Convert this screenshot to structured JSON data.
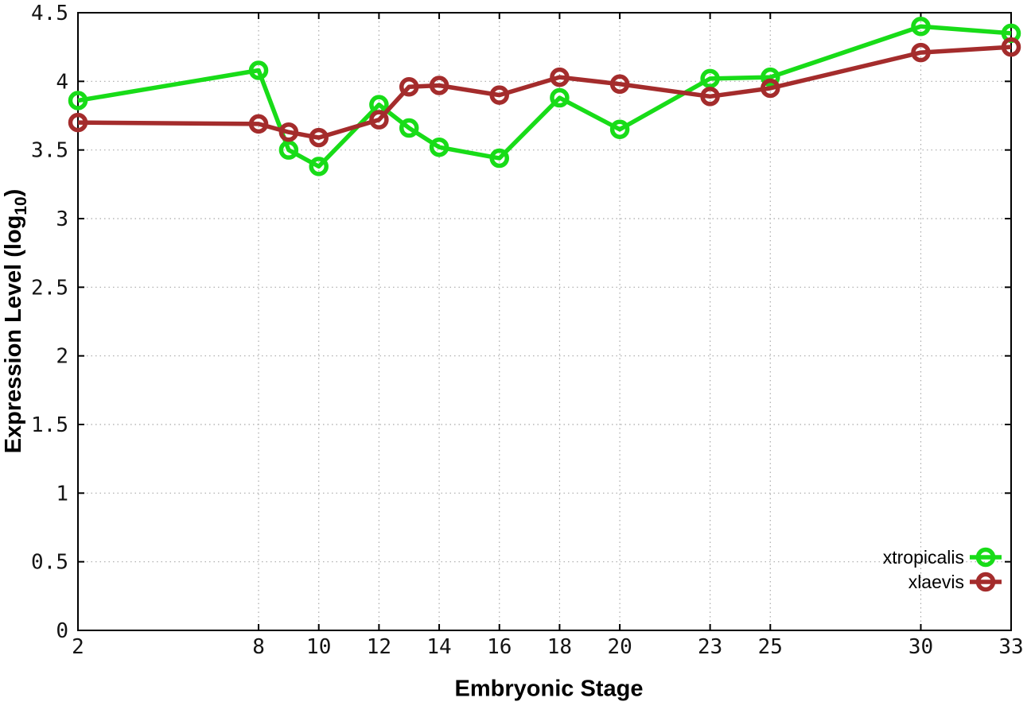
{
  "chart_data": {
    "type": "line",
    "title": "",
    "xlabel": "Embryonic Stage",
    "ylabel": "Expression Level (log10)",
    "ylabel_parts": {
      "prefix": "Expression Level (log",
      "sub": "10",
      "suffix": ")"
    },
    "x": [
      2,
      8,
      9,
      10,
      12,
      13,
      14,
      16,
      18,
      20,
      23,
      25,
      30,
      33
    ],
    "series": [
      {
        "name": "xtropicalis",
        "color": "#18DC18",
        "values": [
          3.86,
          4.08,
          3.5,
          3.38,
          3.83,
          3.66,
          3.52,
          3.44,
          3.88,
          3.65,
          4.02,
          4.03,
          4.4,
          4.35
        ]
      },
      {
        "name": "xlaevis",
        "color": "#A42C2C",
        "values": [
          3.7,
          3.69,
          3.63,
          3.59,
          3.72,
          3.96,
          3.97,
          3.9,
          4.03,
          3.98,
          3.89,
          3.95,
          4.21,
          4.25
        ]
      }
    ],
    "xlim": [
      2,
      33
    ],
    "ylim": [
      0,
      4.5
    ],
    "xticks": [
      2,
      8,
      10,
      12,
      14,
      16,
      18,
      20,
      23,
      25,
      30,
      33
    ],
    "xtick_labels": [
      "2",
      "8",
      "10",
      "12",
      "14",
      "16",
      "18",
      "20",
      "23",
      "25",
      "30",
      "33"
    ],
    "yticks": [
      0,
      0.5,
      1,
      1.5,
      2,
      2.5,
      3,
      3.5,
      4,
      4.5
    ],
    "ytick_labels": [
      "0",
      "0.5",
      "1",
      "1.5",
      "2",
      "2.5",
      "3",
      "3.5",
      "4",
      "4.5"
    ],
    "grid": true,
    "legend_position": "bottom-right",
    "background_color": "#ffffff",
    "border_color": "#000000",
    "grid_color": "#a9a9a9"
  }
}
